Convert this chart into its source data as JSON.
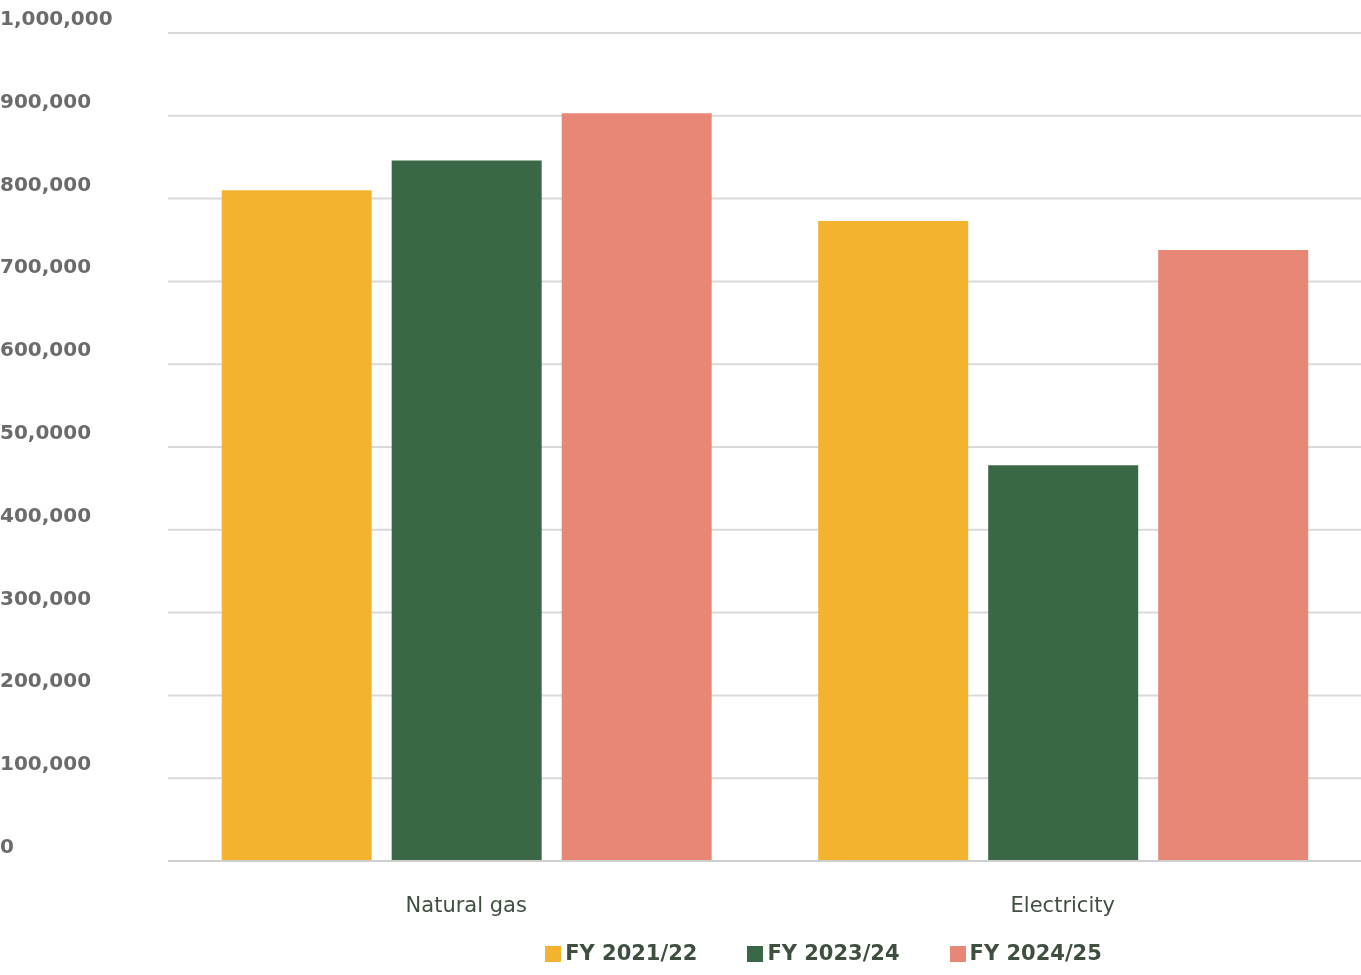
{
  "chart_data": {
    "type": "bar",
    "categories": [
      "Natural gas",
      "Electricity"
    ],
    "series": [
      {
        "name": "FY 2021/22",
        "color": "#f4b32e",
        "values": [
          810000,
          773000
        ]
      },
      {
        "name": "FY 2023/24",
        "color": "#3a6847",
        "values": [
          846000,
          478000
        ]
      },
      {
        "name": "FY 2024/25",
        "color": "#e98776",
        "values": [
          903000,
          738000
        ]
      }
    ],
    "ylim": [
      0,
      1000000
    ],
    "yticks": [
      0,
      {
        "value": 100000,
        "label": "100,000"
      },
      {
        "value": 200000,
        "label": "200,000"
      },
      {
        "value": 300000,
        "label": "300,000"
      },
      {
        "value": 400000,
        "label": "400,000"
      },
      {
        "value": 500000,
        "label": "50,0000"
      },
      {
        "value": 600000,
        "label": "600,000"
      },
      {
        "value": 700000,
        "label": "700,000"
      },
      {
        "value": 800000,
        "label": "800,000"
      },
      {
        "value": 900000,
        "label": "900,000"
      },
      {
        "value": 1000000,
        "label": "1,000,000"
      }
    ],
    "grid": "y",
    "legend": "bottom"
  }
}
